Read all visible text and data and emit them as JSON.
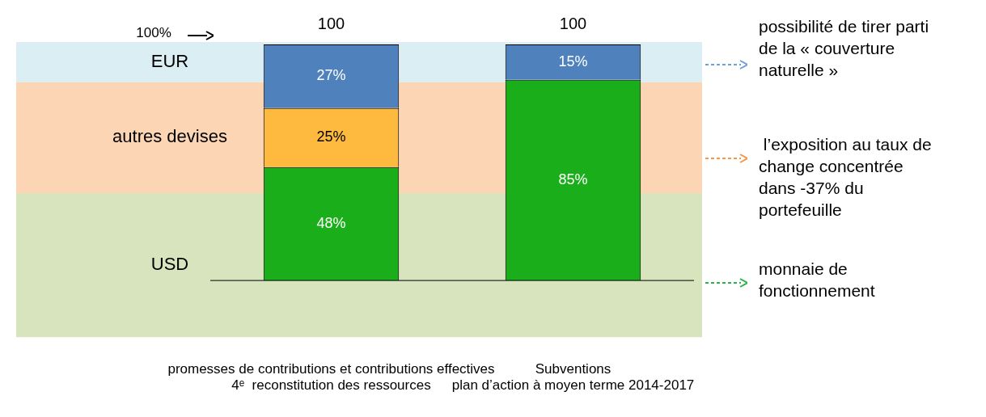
{
  "chart_data": {
    "type": "bar",
    "stacked": true,
    "categories": [
      "promesses de contributions et contributions effectives\n4ᵉ  reconstitution des ressources",
      "Subventions\nplan d’action à moyen terme 2014-2017"
    ],
    "series": [
      {
        "color": "#1aaf1a",
        "values": [
          48,
          85
        ],
        "value_labels": [
          "48%",
          "85%"
        ]
      },
      {
        "color": "#fdba3f",
        "values": [
          25,
          null
        ],
        "value_labels": [
          "25%",
          null
        ]
      },
      {
        "color": "#4f81bd",
        "values": [
          27,
          15
        ],
        "value_labels": [
          "27%",
          "15%"
        ]
      }
    ],
    "totals": [
      "100",
      "100"
    ],
    "ylim": [
      -24,
      101
    ],
    "tick_labels": "x",
    "grid": false,
    "legend": false,
    "bands": [
      {
        "axis": "y",
        "from": 84,
        "to": 101,
        "label": "EUR",
        "color": "#dbeef4"
      },
      {
        "axis": "y",
        "from": 37,
        "to": 84,
        "label": "autres devises",
        "color": "#fcd5b5"
      },
      {
        "axis": "y",
        "from": -24,
        "to": 37,
        "label": "USD",
        "color": "#d7e4bd"
      }
    ],
    "annotations": [
      {
        "text": "100%",
        "y": 100
      },
      "possibilité de tirer parti\nde la « couverture\nnaturelle »",
      " l’exposition au taux de\nchange concentrée\ndans -37% du\nportefeuille",
      "monnaie de\nfonctionnement"
    ]
  }
}
